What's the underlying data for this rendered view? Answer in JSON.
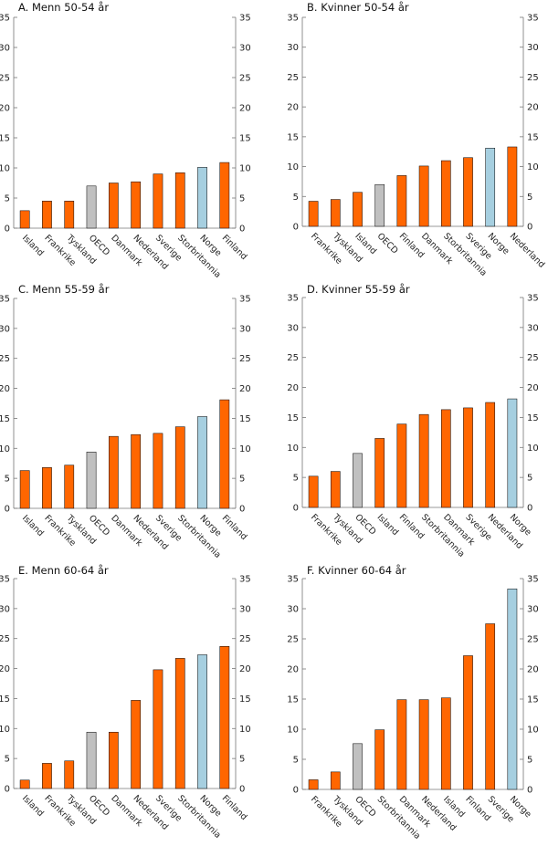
{
  "colors": {
    "country": "#ff6600",
    "oecd": "#c0c0c0",
    "norway": "#a6cfe0"
  },
  "chart_data": [
    {
      "type": "bar",
      "title": "A. Menn 50-54 år",
      "ylim": [
        0,
        35
      ],
      "yticks": [
        0,
        5,
        10,
        15,
        20,
        25,
        30,
        35
      ],
      "categories": [
        "Island",
        "Frankrike",
        "Tyskland",
        "OECD",
        "Danmark",
        "Nederland",
        "Sverige",
        "Storbritannia",
        "Norge",
        "Finland"
      ],
      "values": [
        2.9,
        4.5,
        4.5,
        7.0,
        7.5,
        7.7,
        9.0,
        9.2,
        10.1,
        10.9
      ],
      "kinds": [
        "country",
        "country",
        "country",
        "oecd",
        "country",
        "country",
        "country",
        "country",
        "norway",
        "country"
      ]
    },
    {
      "type": "bar",
      "title": "B. Kvinner 50-54 år",
      "ylim": [
        0,
        35
      ],
      "yticks": [
        0,
        5,
        10,
        15,
        20,
        25,
        30,
        35
      ],
      "categories": [
        "Frankrike",
        "Tyskland",
        "Island",
        "OECD",
        "Finland",
        "Danmark",
        "Storbritannia",
        "Sverige",
        "Norge",
        "Nederland"
      ],
      "values": [
        4.2,
        4.5,
        5.7,
        7.0,
        8.5,
        10.1,
        11.0,
        11.5,
        13.1,
        13.3
      ],
      "kinds": [
        "country",
        "country",
        "country",
        "oecd",
        "country",
        "country",
        "country",
        "country",
        "norway",
        "country"
      ]
    },
    {
      "type": "bar",
      "title": "C. Menn 55-59 år",
      "ylim": [
        0,
        35
      ],
      "yticks": [
        0,
        5,
        10,
        15,
        20,
        25,
        30,
        35
      ],
      "categories": [
        "Island",
        "Frankrike",
        "Tyskland",
        "OECD",
        "Danmark",
        "Nederland",
        "Sverige",
        "Storbritannia",
        "Norge",
        "Finland"
      ],
      "values": [
        6.3,
        6.8,
        7.2,
        9.4,
        12.0,
        12.3,
        12.5,
        13.6,
        15.3,
        18.1
      ],
      "kinds": [
        "country",
        "country",
        "country",
        "oecd",
        "country",
        "country",
        "country",
        "country",
        "norway",
        "country"
      ]
    },
    {
      "type": "bar",
      "title": "D. Kvinner 55-59 år",
      "ylim": [
        0,
        35
      ],
      "yticks": [
        0,
        5,
        10,
        15,
        20,
        25,
        30,
        35
      ],
      "categories": [
        "Frankrike",
        "Tyskland",
        "OECD",
        "Island",
        "Finland",
        "Storbritannia",
        "Danmark",
        "Sverige",
        "Nederland",
        "Norge"
      ],
      "values": [
        5.2,
        6.0,
        9.0,
        11.5,
        13.9,
        15.5,
        16.3,
        16.6,
        17.5,
        18.1
      ],
      "kinds": [
        "country",
        "country",
        "oecd",
        "country",
        "country",
        "country",
        "country",
        "country",
        "country",
        "norway"
      ]
    },
    {
      "type": "bar",
      "title": "E. Menn 60-64 år",
      "ylim": [
        0,
        35
      ],
      "yticks": [
        0,
        5,
        10,
        15,
        20,
        25,
        30,
        35
      ],
      "categories": [
        "Island",
        "Frankrike",
        "Tyskland",
        "OECD",
        "Danmark",
        "Nederland",
        "Sverige",
        "Storbritannia",
        "Norge",
        "Finland"
      ],
      "values": [
        1.4,
        4.2,
        4.6,
        9.4,
        9.4,
        14.7,
        19.8,
        21.7,
        22.3,
        23.7
      ],
      "kinds": [
        "country",
        "country",
        "country",
        "oecd",
        "country",
        "country",
        "country",
        "country",
        "norway",
        "country"
      ]
    },
    {
      "type": "bar",
      "title": "F. Kvinner 60-64 år",
      "ylim": [
        0,
        35
      ],
      "yticks": [
        0,
        5,
        10,
        15,
        20,
        25,
        30,
        35
      ],
      "categories": [
        "Frankrike",
        "Tyskland",
        "OECD",
        "Storbritannia",
        "Danmark",
        "Nederland",
        "Island",
        "Finland",
        "Sverige",
        "Norge"
      ],
      "values": [
        1.6,
        2.9,
        7.6,
        9.9,
        14.9,
        14.9,
        15.2,
        22.2,
        27.5,
        33.3
      ],
      "kinds": [
        "country",
        "country",
        "oecd",
        "country",
        "country",
        "country",
        "country",
        "country",
        "country",
        "norway"
      ]
    }
  ]
}
